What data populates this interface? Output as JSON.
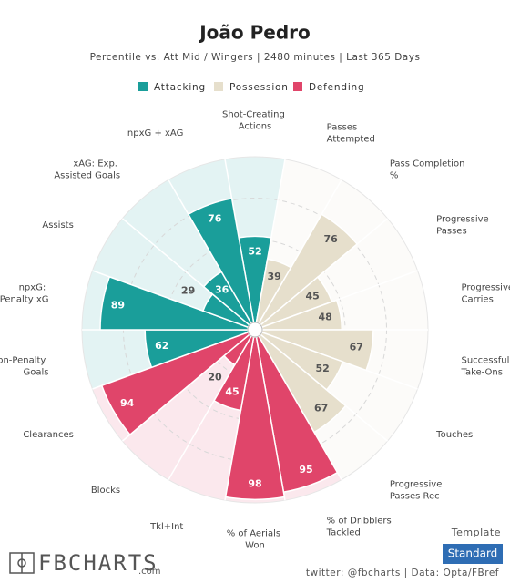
{
  "chart_data": {
    "type": "pizza",
    "title": "João Pedro",
    "subtitle": "Percentile vs. Att Mid / Wingers | 2480 minutes | Last 365 Days",
    "categories": [
      "Shot-Creating Actions",
      "Passes Attempted",
      "Pass Completion %",
      "Progressive Passes",
      "Progressive Carries",
      "Successful Take-Ons",
      "Touches",
      "Progressive Passes Rec",
      "% of Dribblers Tackled",
      "% of Aerials Won",
      "Tkl+Int",
      "Blocks",
      "Clearances",
      "Non-Penalty Goals",
      "npxG: Non-Penalty xG",
      "Assists",
      "xAG: Exp. Assisted Goals",
      "npxG + xAG"
    ],
    "series": [
      {
        "name": "Attacking",
        "color": "#1a9e9a",
        "values": [
          52,
          null,
          null,
          null,
          null,
          null,
          null,
          null,
          null,
          null,
          null,
          null,
          null,
          62,
          89,
          29,
          36,
          76
        ]
      },
      {
        "name": "Possession",
        "color": "#e6dfcc",
        "values": [
          null,
          39,
          76,
          45,
          48,
          67,
          52,
          67,
          null,
          null,
          null,
          null,
          null,
          null,
          null,
          null,
          null,
          null
        ]
      },
      {
        "name": "Defending",
        "color": "#e0456a",
        "values": [
          null,
          null,
          null,
          null,
          null,
          null,
          null,
          null,
          95,
          98,
          45,
          20,
          94,
          null,
          null,
          null,
          null,
          null
        ]
      }
    ],
    "rlim": [
      0,
      100
    ],
    "rticks": [
      25,
      50,
      75,
      100
    ]
  },
  "branding": {
    "logo": "FBCHARTS",
    "logo_suffix": ".com",
    "template_label": "Template",
    "template_button": "Standard",
    "credits": "twitter: @fbcharts | Data: Opta/FBref"
  }
}
